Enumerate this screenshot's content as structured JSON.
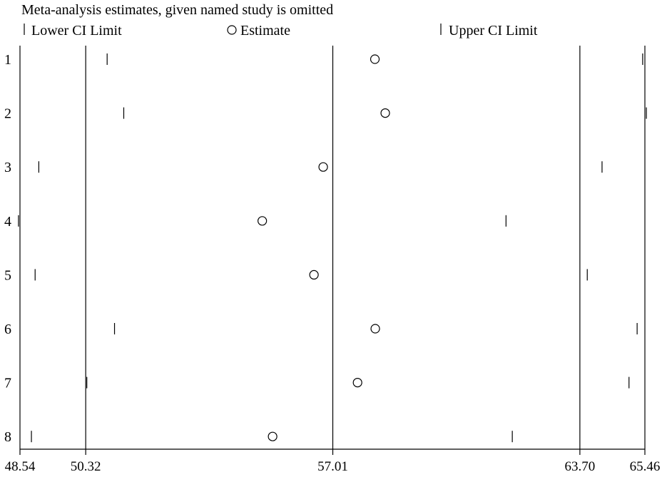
{
  "chart_data": {
    "type": "scatter",
    "title": "Meta-analysis estimates, given named study is omitted",
    "legend": {
      "placement": "top",
      "items": [
        {
          "key": "lower",
          "label": "Lower CI Limit",
          "marker": "tick"
        },
        {
          "key": "estimate",
          "label": "Estimate",
          "marker": "circle"
        },
        {
          "key": "upper",
          "label": "Upper CI Limit",
          "marker": "tick"
        }
      ]
    },
    "xlim": [
      48.54,
      65.46
    ],
    "x_ticks": [
      48.54,
      50.32,
      57.01,
      63.7,
      65.46
    ],
    "x_tick_labels": [
      "48.54",
      "50.32",
      "57.01",
      "63.70",
      "65.46"
    ],
    "reference_lines": [
      50.32,
      57.01,
      63.7
    ],
    "studies": [
      "1",
      "2",
      "3",
      "4",
      "5",
      "6",
      "7",
      "8"
    ],
    "series": [
      {
        "name": "Lower CI Limit",
        "values": [
          50.9,
          51.35,
          49.05,
          48.5,
          48.95,
          51.1,
          50.35,
          48.85
        ]
      },
      {
        "name": "Estimate",
        "values": [
          58.15,
          58.43,
          56.75,
          55.1,
          56.5,
          58.16,
          57.68,
          55.38
        ]
      },
      {
        "name": "Upper CI Limit",
        "values": [
          65.4,
          65.5,
          64.3,
          61.7,
          63.9,
          65.25,
          65.03,
          61.87
        ]
      }
    ],
    "grid": false
  }
}
